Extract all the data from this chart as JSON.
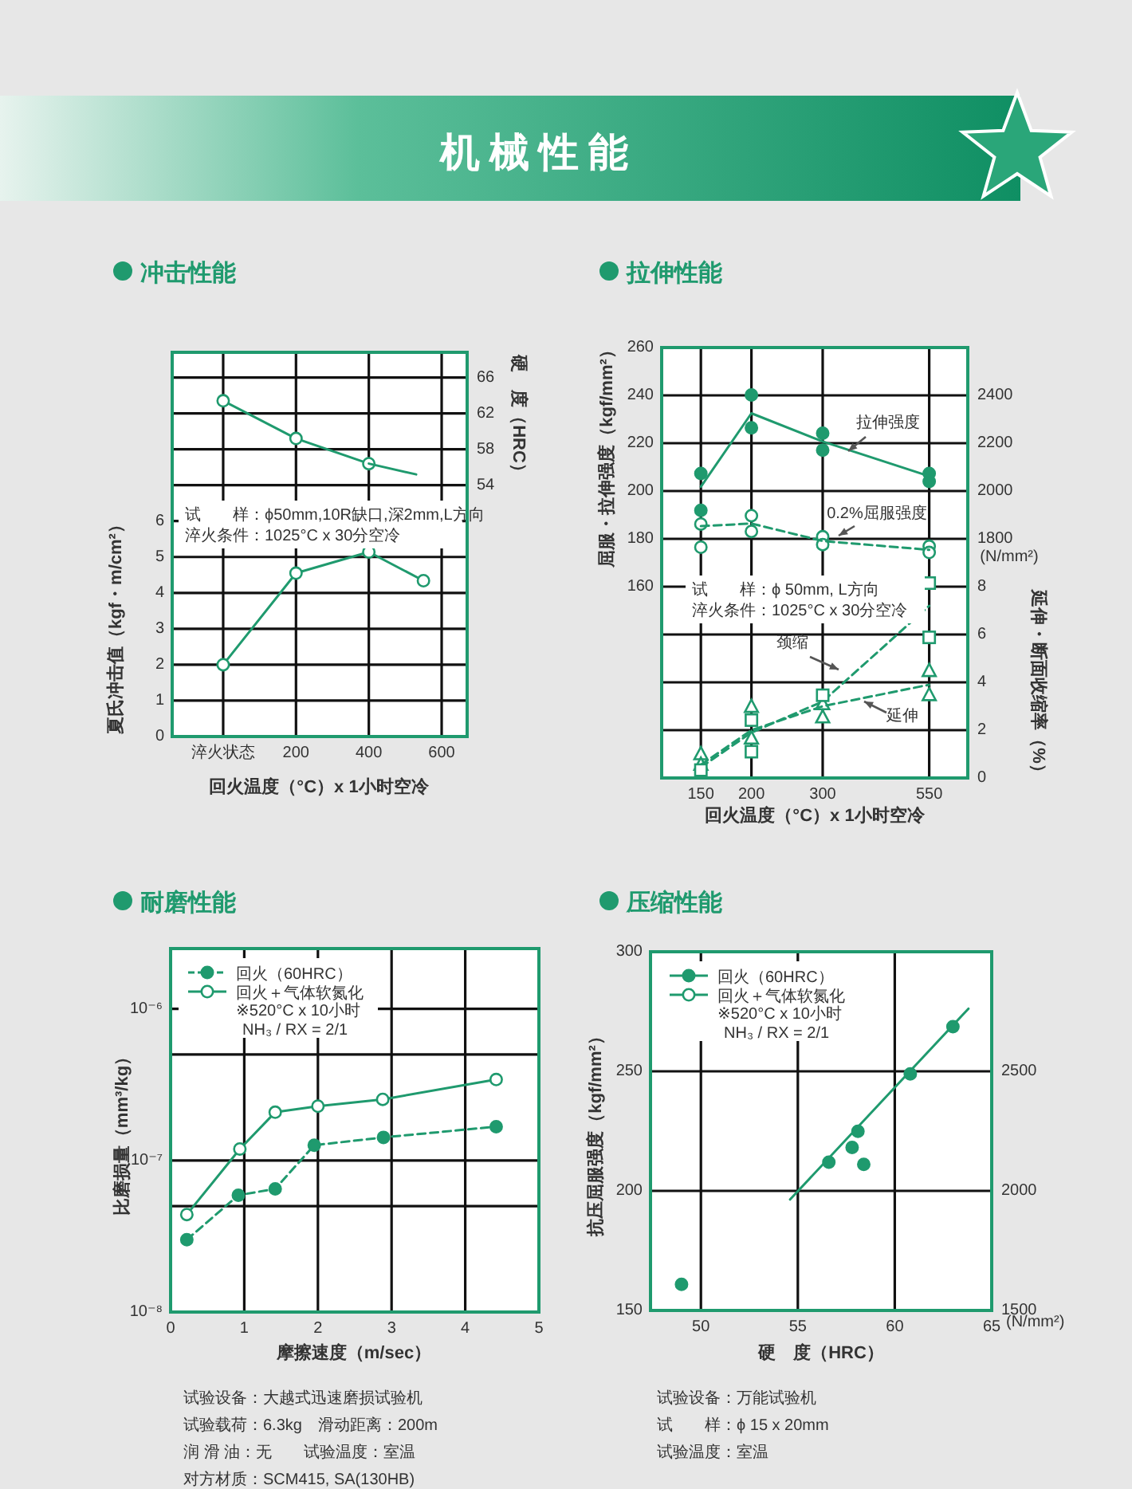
{
  "chart_data": [
    {
      "type": "other",
      "title": "机械性能"
    },
    {
      "type": "line",
      "title": "冲击性能",
      "xlabel": "回火温度（°C）x 1小时空冷",
      "ylabel": "夏氏冲击值（kgf・m/cm²）",
      "y2label": "硬　度（HRC）",
      "annotations": [
        "试　　样：ϕ50mm,10R缺口,深2mm,L方向",
        "淬火条件：1025°C x 30分空冷"
      ],
      "xlim": [
        -140,
        670
      ],
      "xticks": [
        {
          "value": 0,
          "label": "淬火状态"
        },
        200,
        400,
        600
      ],
      "ylim": [
        0,
        10.7
      ],
      "yticks": [
        0,
        1,
        2,
        3,
        4,
        5,
        6,
        {
          "value": 7,
          "label": null
        },
        {
          "value": 8,
          "label": null
        },
        {
          "value": 9,
          "label": null
        },
        {
          "value": 10,
          "label": null
        }
      ],
      "y2lim": [
        26,
        68.8
      ],
      "y2ticks": [
        54,
        58,
        62,
        66
      ],
      "grid": true,
      "marker": "circle",
      "series": [
        {
          "color": "#1f9a6e",
          "x": [
            0,
            200,
            400,
            550
          ],
          "values": [
            2.0,
            4.55,
            5.14,
            4.34
          ]
        },
        {
          "color": "#1f9a6e",
          "axis": "y2",
          "x": [
            0,
            200,
            400
          ],
          "values": [
            63.4,
            59.2,
            56.4
          ]
        },
        {
          "type": "line",
          "color": "#1f9a6e",
          "axis": "y2",
          "marker": "none",
          "x": [
            400,
            530
          ],
          "values": [
            56.4,
            55.2
          ]
        }
      ]
    },
    {
      "type": "line",
      "title": "拉伸性能",
      "xlabel": "回火温度（°C）x 1小时空冷",
      "ylabel": "屈服・拉伸强度（kgf/mm²）",
      "y2label": "(N/mm²)",
      "y3label": "延伸・断面收缩率（%）",
      "annotations": [
        "试　　样：ϕ 50mm, L方向",
        "淬火条件：1025°C x 30分空冷"
      ],
      "log": "x",
      "xlim": [
        120,
        685
      ],
      "xticks": [
        150,
        200,
        300,
        550
      ],
      "ylim": [
        80,
        260
      ],
      "yticks": [
        {
          "value": 100,
          "label": null
        },
        {
          "value": 120,
          "label": null
        },
        {
          "value": 140,
          "label": null
        },
        160,
        180,
        200,
        220,
        240,
        260
      ],
      "y2lim": [
        800,
        2600
      ],
      "y2ticks": [
        1800,
        2000,
        2200,
        2400
      ],
      "y3lim": [
        0,
        18
      ],
      "y3ticks": [
        0,
        2,
        4,
        6,
        8
      ],
      "grid": true,
      "series": [
        {
          "type": "scatter",
          "color": "#1f9a6e",
          "marker": "circle",
          "x": [
            150,
            150,
            200,
            200,
            300,
            300,
            550,
            550
          ],
          "values": [
            207.3,
            191.9,
            240.2,
            226.4,
            224.2,
            217.1,
            207.3,
            204.0
          ]
        },
        {
          "type": "line",
          "name": "拉伸强度",
          "color": "#1f9a6e",
          "marker": "none",
          "x": [
            150,
            200,
            300,
            550
          ],
          "values": [
            201.8,
            232.5,
            220.7,
            206.2
          ]
        },
        {
          "type": "scatter",
          "color": "#1f9a6e",
          "marker": "circle",
          "x": [
            150,
            150,
            200,
            200,
            300,
            300,
            550,
            550
          ],
          "values": [
            186.2,
            176.5,
            189.7,
            183.1,
            180.9,
            177.6,
            176.9,
            174.3
          ]
        },
        {
          "type": "line",
          "name": "0.2%屈服强度",
          "color": "#1f9a6e",
          "marker": "none",
          "line_style": "dashed",
          "x": [
            150,
            200,
            300,
            550
          ],
          "values": [
            185.3,
            186.4,
            179.1,
            175.4
          ]
        },
        {
          "type": "scatter",
          "color": "#1f9a6e",
          "marker": "square",
          "axis": "y3",
          "x": [
            150,
            200,
            200,
            300,
            550,
            550
          ],
          "values": [
            0.33,
            2.42,
            1.1,
            3.46,
            8.15,
            5.88
          ]
        },
        {
          "type": "line",
          "name": "颈缩",
          "color": "#1f9a6e",
          "marker": "none",
          "line_style": "dashed",
          "axis": "y3",
          "x": [
            150,
            200,
            300,
            550
          ],
          "values": [
            0.45,
            1.9,
            3.2,
            7.2
          ]
        },
        {
          "type": "scatter",
          "color": "#1f9a6e",
          "marker": "triangle",
          "axis": "y3",
          "x": [
            150,
            150,
            200,
            200,
            300,
            300,
            550,
            550
          ],
          "values": [
            0.99,
            0.55,
            2.97,
            1.65,
            3.08,
            2.53,
            4.47,
            3.46
          ]
        },
        {
          "type": "line",
          "name": "延伸",
          "color": "#1f9a6e",
          "marker": "none",
          "line_style": "dashed",
          "axis": "y3",
          "x": [
            150,
            200,
            300,
            550
          ],
          "values": [
            0.55,
            2.0,
            3.0,
            3.9
          ]
        }
      ]
    },
    {
      "type": "line",
      "title": "耐磨性能",
      "xlabel": "摩擦速度（m/sec）",
      "ylabel": "比磨损量（mm³/kg）",
      "annotations": [
        "※520°C x 10小时",
        "NH₃ / RX = 2/1",
        "试验设备：大越式迅速磨损试验机",
        "试验载荷：6.3kg　滑动距离：200m",
        "润 滑 油：无　　试验温度：室温",
        "对方材质：SCM415, SA(130HB)"
      ],
      "log": "y",
      "xlim": [
        0,
        5
      ],
      "xticks": [
        0,
        1,
        2,
        3,
        4,
        5
      ],
      "ylim": [
        1e-08,
        2.5e-06
      ],
      "yticks": [
        {
          "value": 1e-08,
          "label": "10⁻⁸"
        },
        {
          "value": 5e-08,
          "label": null
        },
        {
          "value": 1e-07,
          "label": "10⁻⁷"
        },
        {
          "value": 5e-07,
          "label": null
        },
        {
          "value": 1e-06,
          "label": "10⁻⁶"
        }
      ],
      "grid": true,
      "legend": "top left",
      "marker": "circle",
      "series": [
        {
          "name": "回火（60HRC）",
          "color": "#1f9a6e",
          "line_style": "dashed",
          "x": [
            0.22,
            0.92,
            1.42,
            1.95,
            2.89,
            4.42
          ],
          "values": [
            3e-08,
            5.9e-08,
            6.5e-08,
            1.26e-07,
            1.42e-07,
            1.67e-07
          ]
        },
        {
          "name": "回火＋气体软氮化",
          "color": "#1f9a6e",
          "x": [
            0.22,
            0.94,
            1.42,
            2.0,
            2.88,
            4.42
          ],
          "values": [
            4.4e-08,
            1.19e-07,
            2.08e-07,
            2.28e-07,
            2.53e-07,
            3.42e-07
          ]
        }
      ]
    },
    {
      "type": "scatter",
      "title": "压缩性能",
      "xlabel": "硬　度（HRC）",
      "ylabel": "抗压屈服强度（kgf/mm²）",
      "y2label": "(N/mm²)",
      "annotations": [
        "※520°C x 10小时",
        "NH₃ / RX = 2/1",
        "试验设备：万能试验机",
        "试　　样：ϕ 15 x 20mm",
        "试验温度：室温"
      ],
      "xlim": [
        47.4,
        65
      ],
      "xticks": [
        50,
        55,
        60,
        65
      ],
      "ylim": [
        150,
        300
      ],
      "yticks": [
        150,
        200,
        250,
        300
      ],
      "y2lim": [
        1500,
        3000
      ],
      "y2ticks": [
        1500,
        2000,
        2500
      ],
      "grid": true,
      "legend": "top left",
      "marker": "circle",
      "series": [
        {
          "name": "回火（60HRC）",
          "color": "#1f9a6e",
          "x": [
            49.0,
            56.6,
            58.1,
            57.8,
            58.4,
            60.8,
            63.0
          ],
          "values": [
            160.9,
            212.0,
            224.9,
            218.2,
            211.1,
            248.9,
            268.7
          ]
        },
        {
          "name": "回火＋气体软氮化",
          "color": "#1f9a6e"
        },
        {
          "type": "line",
          "color": "#1f9a6e",
          "marker": "none",
          "x": [
            54.6,
            63.8
          ],
          "values": [
            196.4,
            276.2
          ]
        }
      ]
    }
  ]
}
